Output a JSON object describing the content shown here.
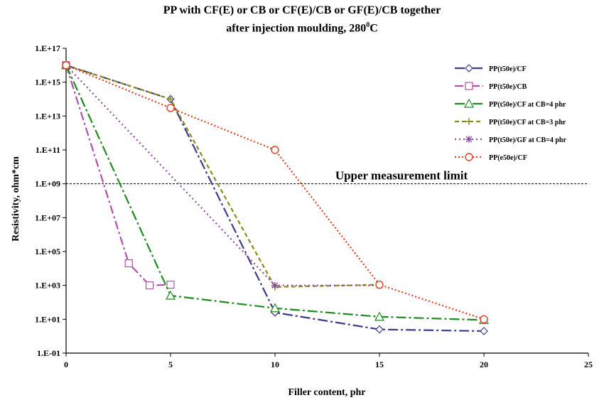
{
  "chart_data": {
    "type": "line",
    "title": "PP with CF(E) or CB or CF(E)/CB or GF(E)/CB together",
    "subtitle_main": "after injection moulding, 280",
    "subtitle_sup": "0",
    "subtitle_end": "C",
    "xlabel": "Filler content, phr",
    "ylabel": "Resistivity, ohm*cm",
    "xlim": [
      0,
      25
    ],
    "ylim_log10": [
      -1,
      17
    ],
    "x_ticks": [
      0,
      5,
      10,
      15,
      20,
      25
    ],
    "y_ticks": [
      "1.E-01",
      "1.E+01",
      "1.E+03",
      "1.E+05",
      "1.E+07",
      "1.E+09",
      "1.E+11",
      "1.E+13",
      "1.E+15",
      "1.E+17"
    ],
    "y_ticks_log10": [
      -1,
      1,
      3,
      5,
      7,
      9,
      11,
      13,
      15,
      17
    ],
    "grid": false,
    "legend_position": "top-right",
    "annotation": {
      "text": "Upper measurement limit",
      "y": 1000000000.0
    },
    "series": [
      {
        "name": "PP(t50e)/CF",
        "color": "#3c3c8c",
        "dash": "14,4,3,4",
        "marker": "diamond",
        "x": [
          0,
          5,
          10,
          15,
          20
        ],
        "y": [
          1e+16,
          100000000000000.0,
          25,
          2.5,
          2
        ]
      },
      {
        "name": "PP(t50e)/CB",
        "color": "#b050b0",
        "dash": "12,4,3,4",
        "marker": "square",
        "x": [
          0,
          3,
          4,
          5
        ],
        "y": [
          1e+16,
          20000.0,
          1000.0,
          1100.0
        ]
      },
      {
        "name": "PP(t50e)/CF at CB=4 phr",
        "color": "#1f8a1f",
        "dash": "14,4,3,4",
        "marker": "triangle",
        "x": [
          0,
          5,
          10,
          15,
          20
        ],
        "y": [
          1e+16,
          250,
          45,
          14,
          9
        ]
      },
      {
        "name": "PP(t50e)/CF at CB=3 phr",
        "color": "#8a8a1a",
        "dash": "6,4",
        "marker": "plus",
        "x": [
          0,
          5,
          10,
          15
        ],
        "y": [
          1e+16,
          100000000000000.0,
          800,
          1100
        ]
      },
      {
        "name": "PP(t50e)/GF at CB=4 phr",
        "color": "#8a4aa8",
        "dash": "2,4",
        "marker": "asterisk",
        "x": [
          0,
          10,
          15
        ],
        "y": [
          1e+16,
          1000.0,
          1000.0
        ]
      },
      {
        "name": "PP(e50e)/CF",
        "color": "#e04020",
        "dash": "2,3",
        "marker": "circle",
        "x": [
          0,
          5,
          10,
          15,
          20
        ],
        "y": [
          1e+16,
          30000000000000.0,
          100000000000.0,
          1100.0,
          10
        ]
      }
    ]
  }
}
